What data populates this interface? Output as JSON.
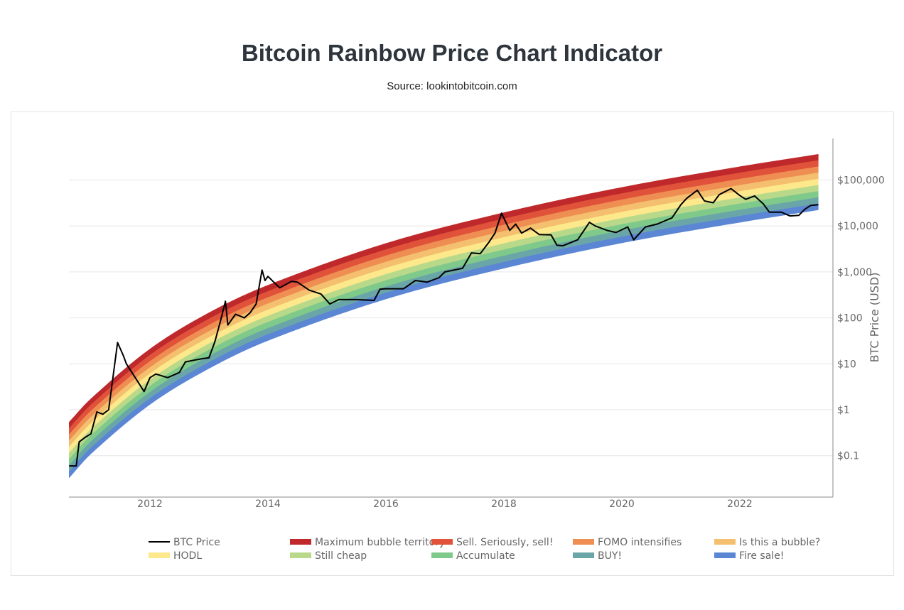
{
  "chart_data": {
    "type": "area",
    "title": "Bitcoin Rainbow Price Chart Indicator",
    "subtitle": "Source: lookintobitcoin.com",
    "ylabel": "BTC Price (USD)",
    "xlabel": "",
    "yscale": "log",
    "ylim": [
      0.02,
      700000
    ],
    "xlim": [
      2010.63,
      2023.6
    ],
    "x_ticks": [
      "2012",
      "2014",
      "2016",
      "2018",
      "2020",
      "2022"
    ],
    "y_ticks": [
      {
        "value": 0.1,
        "label": "$0.1"
      },
      {
        "value": 1,
        "label": "$1"
      },
      {
        "value": 10,
        "label": "$10"
      },
      {
        "value": 100,
        "label": "$100"
      },
      {
        "value": 1000,
        "label": "$1,000"
      },
      {
        "value": 10000,
        "label": "$10,000"
      },
      {
        "value": 100000,
        "label": "$100,000"
      }
    ],
    "grid": true,
    "legend_placement": "bottom",
    "bands": [
      {
        "name": "Maximum bubble territory",
        "color": "#c0292b"
      },
      {
        "name": "Sell. Seriously, sell!",
        "color": "#e0533a"
      },
      {
        "name": "FOMO intensifies",
        "color": "#ef8e52"
      },
      {
        "name": "Is this a bubble?",
        "color": "#f4bf6e"
      },
      {
        "name": "HODL",
        "color": "#fde98c"
      },
      {
        "name": "Still cheap",
        "color": "#b9d98a"
      },
      {
        "name": "Accumulate",
        "color": "#7fc98a"
      },
      {
        "name": "BUY!",
        "color": "#6aa6a8"
      },
      {
        "name": "Fire sale!",
        "color": "#5b86d4"
      }
    ],
    "band_range": {
      "dates": [
        2010.63,
        2011,
        2012,
        2013,
        2014,
        2016,
        2018,
        2020,
        2022,
        2023.33
      ],
      "lowest_usd": [
        0.033,
        0.11,
        1.3,
        7.9,
        32,
        257,
        1200,
        4270,
        12000,
        22400
      ],
      "highest_usd": [
        0.54,
        1.74,
        21,
        129,
        513,
        4170,
        19500,
        69200,
        195000,
        363000
      ]
    },
    "series": [
      {
        "name": "BTC Price",
        "color": "#000000",
        "x": [
          2010.63,
          2010.75,
          2010.8,
          2010.9,
          2011.0,
          2011.1,
          2011.2,
          2011.3,
          2011.39,
          2011.45,
          2011.55,
          2011.6,
          2011.75,
          2011.9,
          2012.0,
          2012.1,
          2012.3,
          2012.5,
          2012.6,
          2012.75,
          2012.9,
          2013.0,
          2013.1,
          2013.2,
          2013.28,
          2013.32,
          2013.45,
          2013.6,
          2013.7,
          2013.8,
          2013.9,
          2013.95,
          2014.0,
          2014.1,
          2014.2,
          2014.4,
          2014.5,
          2014.7,
          2014.9,
          2015.05,
          2015.2,
          2015.5,
          2015.8,
          2015.9,
          2016.0,
          2016.3,
          2016.5,
          2016.7,
          2016.9,
          2017.0,
          2017.3,
          2017.45,
          2017.6,
          2017.75,
          2017.85,
          2017.96,
          2018.1,
          2018.2,
          2018.3,
          2018.45,
          2018.6,
          2018.8,
          2018.9,
          2019.0,
          2019.25,
          2019.45,
          2019.55,
          2019.75,
          2019.9,
          2020.1,
          2020.2,
          2020.4,
          2020.6,
          2020.85,
          2021.0,
          2021.1,
          2021.28,
          2021.4,
          2021.55,
          2021.65,
          2021.85,
          2022.0,
          2022.1,
          2022.25,
          2022.4,
          2022.5,
          2022.7,
          2022.85,
          2023.0,
          2023.1,
          2023.2,
          2023.33
        ],
        "values": [
          0.06,
          0.06,
          0.2,
          0.25,
          0.3,
          0.9,
          0.8,
          1,
          7.5,
          29,
          15,
          10,
          5,
          2.5,
          5,
          6,
          5,
          6.5,
          11,
          12,
          13,
          13.5,
          30,
          90,
          230,
          70,
          120,
          100,
          130,
          200,
          1100,
          650,
          800,
          600,
          450,
          620,
          600,
          400,
          330,
          200,
          250,
          250,
          240,
          420,
          430,
          430,
          650,
          600,
          750,
          1000,
          1200,
          2600,
          2500,
          4500,
          7000,
          19000,
          8000,
          11000,
          7000,
          9000,
          6500,
          6400,
          3800,
          3700,
          5000,
          12000,
          10000,
          8000,
          7200,
          9500,
          5000,
          9500,
          11000,
          15000,
          29000,
          40000,
          60000,
          35000,
          32000,
          48000,
          65000,
          46000,
          38000,
          45000,
          30000,
          20000,
          20000,
          16500,
          17000,
          23000,
          28000,
          29000
        ]
      }
    ]
  }
}
